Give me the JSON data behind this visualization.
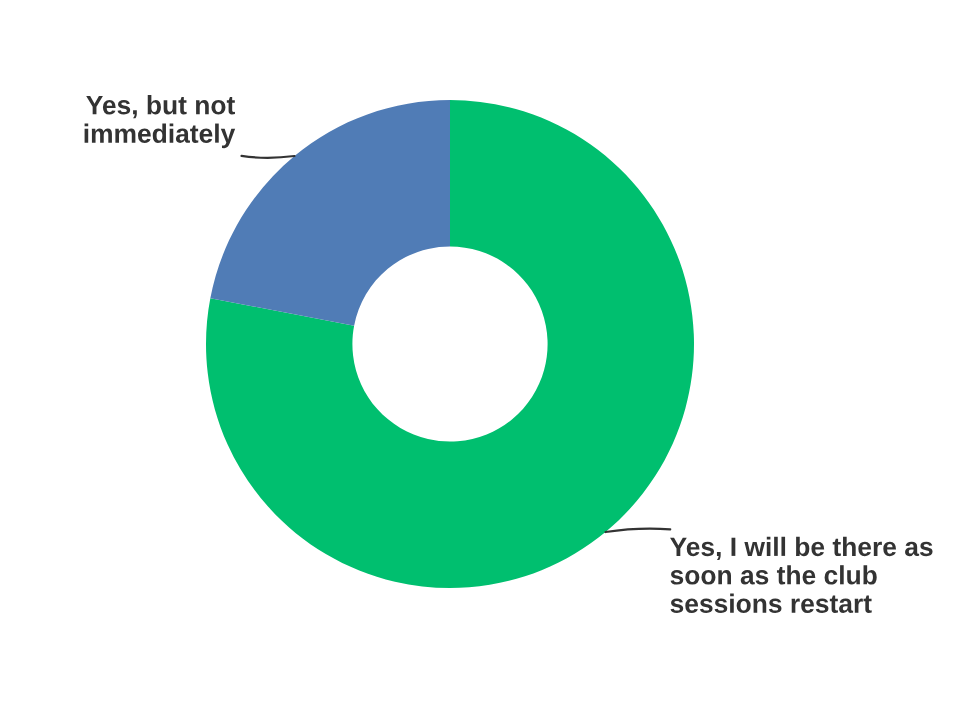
{
  "chart_data": {
    "type": "donut",
    "categories": [
      "Yes, I will be there as soon as the club sessions restart",
      "Yes, but not immediately"
    ],
    "values": [
      78,
      22
    ],
    "colors": [
      "#00bf6f",
      "#507cb6"
    ],
    "legend": false
  }
}
